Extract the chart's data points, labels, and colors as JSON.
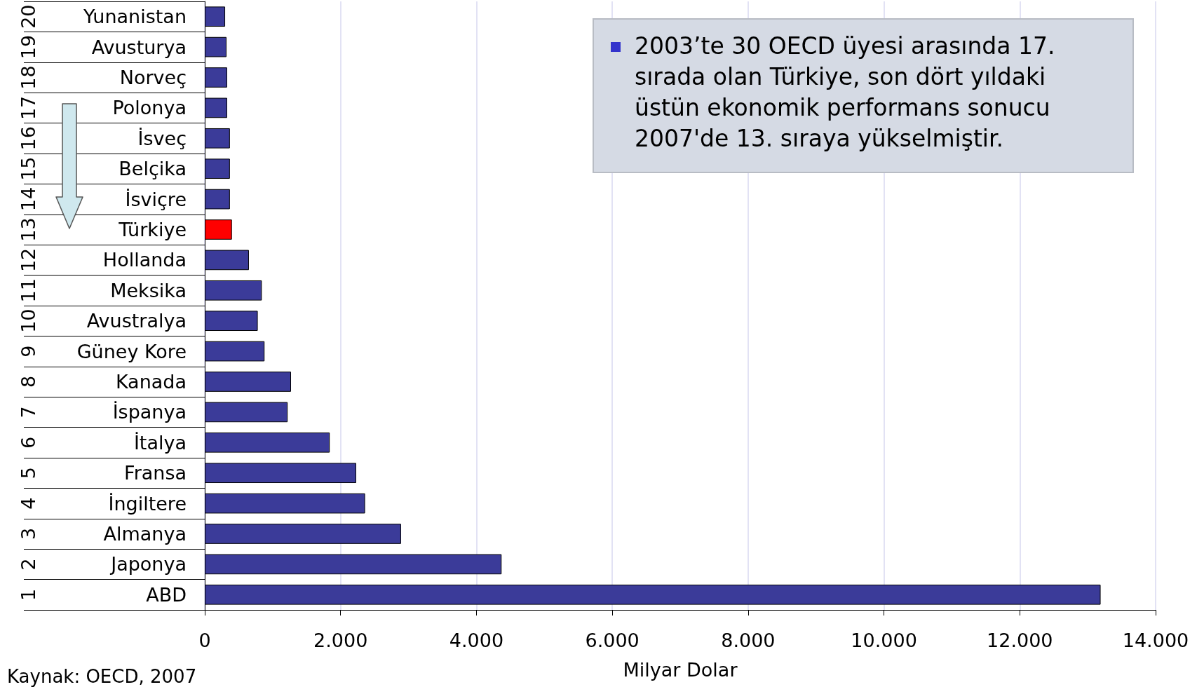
{
  "chart_data": {
    "type": "bar",
    "orientation": "horizontal",
    "categories": [
      "Yunanistan",
      "Avusturya",
      "Norveç",
      "Polonya",
      "İsveç",
      "Belçika",
      "İsviçre",
      "Türkiye",
      "Hollanda",
      "Meksika",
      "Avustralya",
      "Güney Kore",
      "Kanada",
      "İspanya",
      "İtalya",
      "Fransa",
      "İngiltere",
      "Almanya",
      "Japonya",
      "ABD"
    ],
    "values": [
      300,
      320,
      330,
      330,
      370,
      370,
      370,
      400,
      650,
      840,
      780,
      880,
      1270,
      1220,
      1840,
      2230,
      2360,
      2890,
      4370,
      13190
    ],
    "colors": [
      "#3b3b99",
      "#3b3b99",
      "#3b3b99",
      "#3b3b99",
      "#3b3b99",
      "#3b3b99",
      "#3b3b99",
      "#ff0000",
      "#3b3b99",
      "#3b3b99",
      "#3b3b99",
      "#3b3b99",
      "#3b3b99",
      "#3b3b99",
      "#3b3b99",
      "#3b3b99",
      "#3b3b99",
      "#3b3b99",
      "#3b3b99",
      "#3b3b99"
    ],
    "xlabel": "Milyar Dolar",
    "xlim": [
      0,
      14000
    ],
    "xticks": [
      0,
      {
        "value": 2000,
        "label": "2.000"
      },
      {
        "value": 4000,
        "label": "4.000"
      },
      {
        "value": 6000,
        "label": "6.000"
      },
      {
        "value": 8000,
        "label": "8.000"
      },
      {
        "value": 10000,
        "label": "10.000"
      },
      {
        "value": 12000,
        "label": "12.000"
      },
      {
        "value": 14000,
        "label": "14.000"
      }
    ],
    "grid": "x",
    "annotations": [
      "20",
      "19",
      "18",
      "17",
      "16",
      "15",
      "14",
      "13",
      "12",
      "11",
      "10",
      "9",
      "8",
      "7",
      "6",
      "5",
      "4",
      "3",
      "2",
      "1",
      "2003’te 30 OECD üyesi arasında 17. sırada olan Türkiye, son dört yıldaki üstün ekonomik performans sonucu 2007'de 13. sıraya yükselmiştir.",
      "Kaynak: OECD, 2007"
    ]
  }
}
